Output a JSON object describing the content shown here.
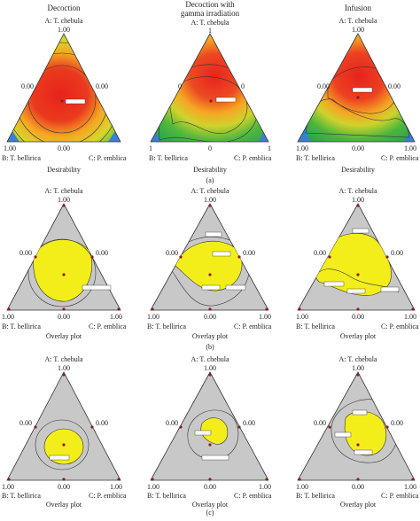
{
  "figure": {
    "panels_top": [
      {
        "title": "Decoction",
        "title2": "",
        "vertex_top": "A: T. chebula",
        "top_value": "1.00",
        "left_value": "0.00",
        "right_value": "0.00",
        "bottom_left_value": "1.00",
        "bottom_center_value": "0.00",
        "bottom_right_value": "",
        "bottom_left_label": "B: T. bellirica",
        "bottom_right_label": "C: P. emblica",
        "xlabel": "Desirability"
      },
      {
        "title": "Decoction with",
        "title2": "gamma irradiation",
        "vertex_top": "A: T. chebula",
        "top_value": "1",
        "left_value": "0",
        "right_value": "0",
        "bottom_left_value": "1",
        "bottom_center_value": "0",
        "bottom_right_value": "1",
        "bottom_left_label": "B: T. bellirica",
        "bottom_right_label": "C: P. emblica",
        "xlabel": "Desirability"
      },
      {
        "title": "Infusion",
        "title2": "",
        "vertex_top": "A: T. chebula",
        "top_value": "1.00",
        "left_value": "0.00",
        "right_value": "0.00",
        "bottom_left_value": "1.00",
        "bottom_center_value": "0.00",
        "bottom_right_value": "1.00",
        "bottom_left_label": "B: T. bellirica",
        "bottom_right_label": "C: P. emblica",
        "xlabel": "Desirability"
      }
    ],
    "panels_mid": [
      {
        "vertex_top": "A: T. chebula",
        "top_value": "1.00",
        "left_value": "0.00",
        "right_value": "0.00",
        "bottom_left_value": "1.00",
        "bottom_center_value": "0.00",
        "bottom_right_value": "1.00",
        "bottom_left_label": "B: T. bellirica",
        "bottom_right_label": "C: P. emblica",
        "xlabel": "Overlay plot"
      },
      {
        "vertex_top": "A: T. chebula",
        "top_value": "1.00",
        "left_value": "0.00",
        "right_value": "0.00",
        "bottom_left_value": "1.00",
        "bottom_center_value": "0.00",
        "bottom_right_value": "1.00",
        "bottom_left_label": "B: T. bellirica",
        "bottom_right_label": "C: P. emblica",
        "xlabel": "Overlay plot"
      },
      {
        "vertex_top": "A: T. chebula",
        "top_value": "1.00",
        "left_value": "0.00",
        "right_value": "0.00",
        "bottom_left_value": "1.00",
        "bottom_center_value": "0.00",
        "bottom_right_value": "1.00",
        "bottom_left_label": "B: T. bellirica",
        "bottom_right_label": "C: P. emblica",
        "xlabel": "Overlay plot"
      }
    ],
    "panels_bot": [
      {
        "vertex_top": "A: T. chebula",
        "top_value": "1.00",
        "left_value": "0.00",
        "right_value": "0.00",
        "bottom_left_value": "1.00",
        "bottom_center_value": "0.00",
        "bottom_right_value": "1.00",
        "bottom_left_label": "B: T. bellirica",
        "bottom_right_label": "C: P. emblica",
        "xlabel": "Overlay plot"
      },
      {
        "vertex_top": "A: T. chebula",
        "top_value": "1.00",
        "left_value": "0.00",
        "right_value": "0.00",
        "bottom_left_value": "1.00",
        "bottom_center_value": "0.00",
        "bottom_right_value": "1.00",
        "bottom_left_label": "B: T. bellirica",
        "bottom_right_label": "C: P. emblica",
        "xlabel": "Overlay plot"
      },
      {
        "vertex_top": "A: T. chebula",
        "top_value": "1.00",
        "left_value": "0.00",
        "right_value": "0.00",
        "bottom_left_value": "1.00",
        "bottom_center_value": "0.00",
        "bottom_right_value": "1.00",
        "bottom_left_label": "B: T. bellirica",
        "bottom_right_label": "C: P. emblica",
        "xlabel": "Overlay plot"
      }
    ],
    "row_labels": [
      "(a)",
      "(b)",
      "(c)"
    ],
    "colors": {
      "grey_region": "#c8c8c8",
      "overlay_yellow": "#f3ee1a",
      "desirability_high": "#e8231c",
      "desirability_mid": "#f5a623",
      "desirability_low": "#2ea44f",
      "desirability_min": "#3a7fd5",
      "design_point": "#8a1f1f"
    }
  }
}
